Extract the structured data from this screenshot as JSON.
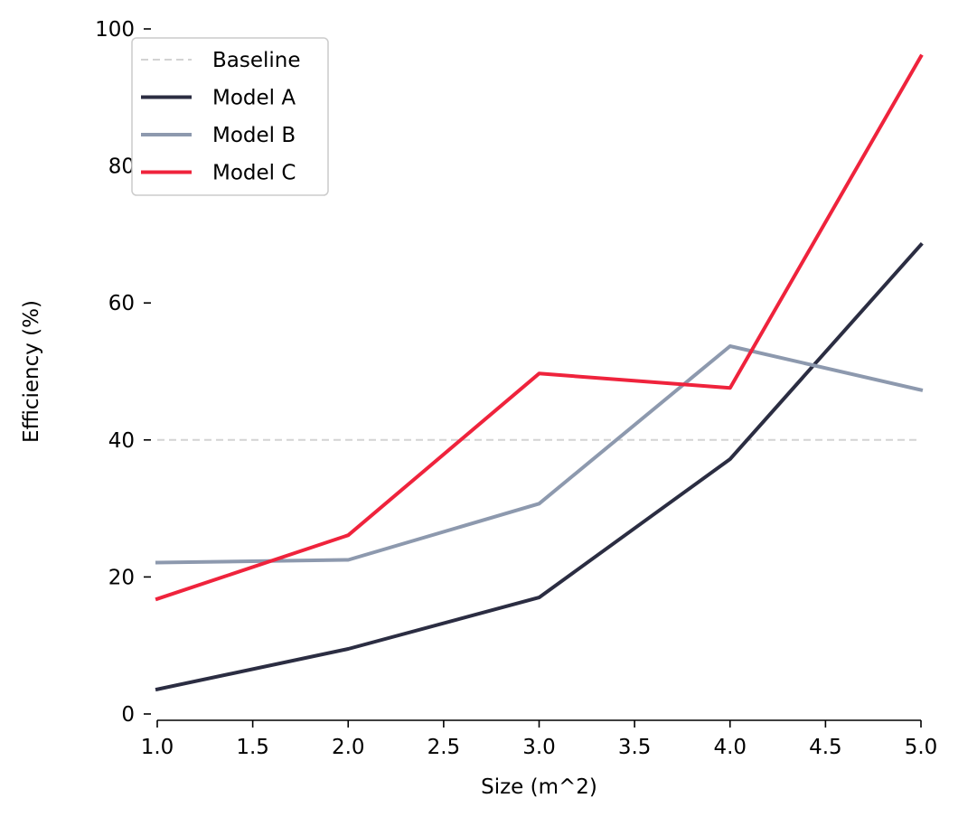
{
  "chart_data": {
    "type": "line",
    "title": "",
    "xlabel": "Size (m^2)",
    "ylabel": "Efficiency (%)",
    "xlim": [
      1.0,
      5.0
    ],
    "ylim": [
      0,
      100
    ],
    "x_ticks": [
      "1.0",
      "1.5",
      "2.0",
      "2.5",
      "3.0",
      "3.5",
      "4.0",
      "4.5",
      "5.0"
    ],
    "y_ticks": [
      "0",
      "20",
      "40",
      "60",
      "80",
      "100"
    ],
    "x": [
      1.0,
      2.0,
      3.0,
      4.0,
      5.0
    ],
    "baseline": {
      "name": "Baseline",
      "value": 40,
      "color": "#d3d3d3",
      "style": "dashed"
    },
    "series": [
      {
        "name": "Model A",
        "color": "#2b2d42",
        "values": [
          3.6,
          9.5,
          17.0,
          37.2,
          68.5
        ]
      },
      {
        "name": "Model B",
        "color": "#8d99ae",
        "values": [
          22.1,
          22.5,
          30.7,
          53.7,
          47.3
        ]
      },
      {
        "name": "Model C",
        "color": "#ef233c",
        "values": [
          16.8,
          26.1,
          49.7,
          47.6,
          96.0
        ]
      }
    ],
    "grid": false,
    "legend_position": "top-left"
  }
}
